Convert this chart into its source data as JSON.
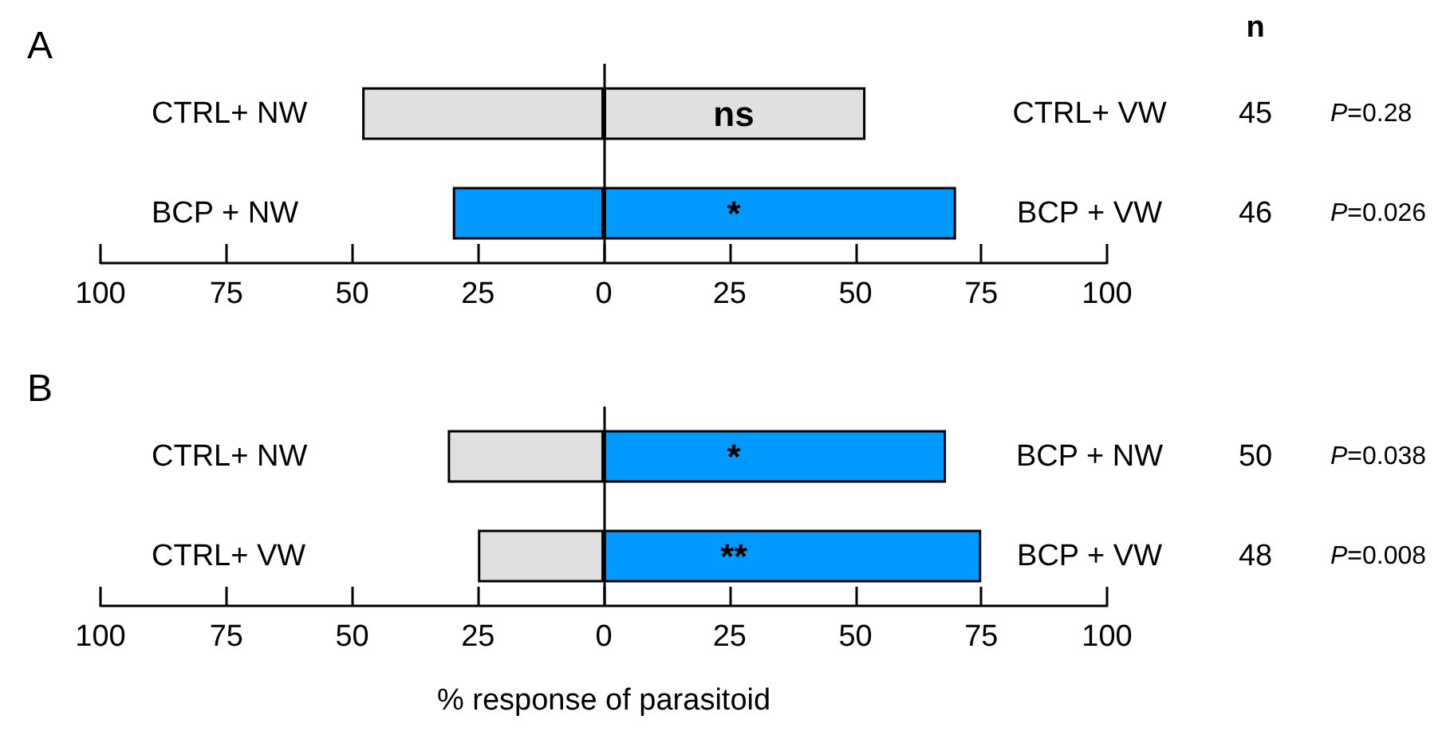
{
  "chart_data": [
    {
      "type": "bar",
      "title": "A",
      "orientation": "horizontal",
      "stacked": true,
      "categories": [
        "CTRL+ NW",
        "BCP + NW"
      ],
      "series": [
        {
          "colors": [
            "#e0e0e0",
            "#0099ff"
          ],
          "values": [
            -48,
            -30
          ]
        },
        {
          "colors": [
            "#e0e0e0",
            "#0099ff"
          ],
          "values": [
            52,
            70
          ]
        }
      ],
      "xlim": [
        -100,
        100
      ],
      "xticks": [
        {
          "value": -100,
          "label": "100"
        },
        {
          "value": -75,
          "label": "75"
        },
        {
          "value": -50,
          "label": "50"
        },
        {
          "value": -25,
          "label": "25"
        },
        0,
        25,
        50,
        75,
        100
      ],
      "ref_lines": [
        {
          "axis": "x",
          "value": 0,
          "color": "#000000"
        }
      ],
      "grid": false,
      "annotations": [
        "n",
        "ns",
        "CTRL+ VW",
        "45",
        "P=0.28",
        "*",
        "BCP + VW",
        "46",
        "P=0.026"
      ]
    },
    {
      "type": "bar",
      "title": "B",
      "orientation": "horizontal",
      "stacked": true,
      "categories": [
        "CTRL+ NW",
        "CTRL+ VW"
      ],
      "xlabel": "% response of parasitoid",
      "series": [
        {
          "colors": [
            "#e0e0e0",
            "#e0e0e0"
          ],
          "values": [
            -31,
            -25
          ]
        },
        {
          "colors": [
            "#0099ff",
            "#0099ff"
          ],
          "values": [
            68,
            75
          ]
        }
      ],
      "xlim": [
        -100,
        100
      ],
      "xticks": [
        {
          "value": -100,
          "label": "100"
        },
        {
          "value": -75,
          "label": "75"
        },
        {
          "value": -50,
          "label": "50"
        },
        {
          "value": -25,
          "label": "25"
        },
        0,
        25,
        50,
        75,
        100
      ],
      "ref_lines": [
        {
          "axis": "x",
          "value": 0,
          "color": "#000000"
        }
      ],
      "grid": false,
      "annotations": [
        "*",
        "BCP + NW",
        "50",
        "P=0.038",
        "**",
        "BCP + VW",
        "48",
        "P=0.008"
      ]
    }
  ]
}
